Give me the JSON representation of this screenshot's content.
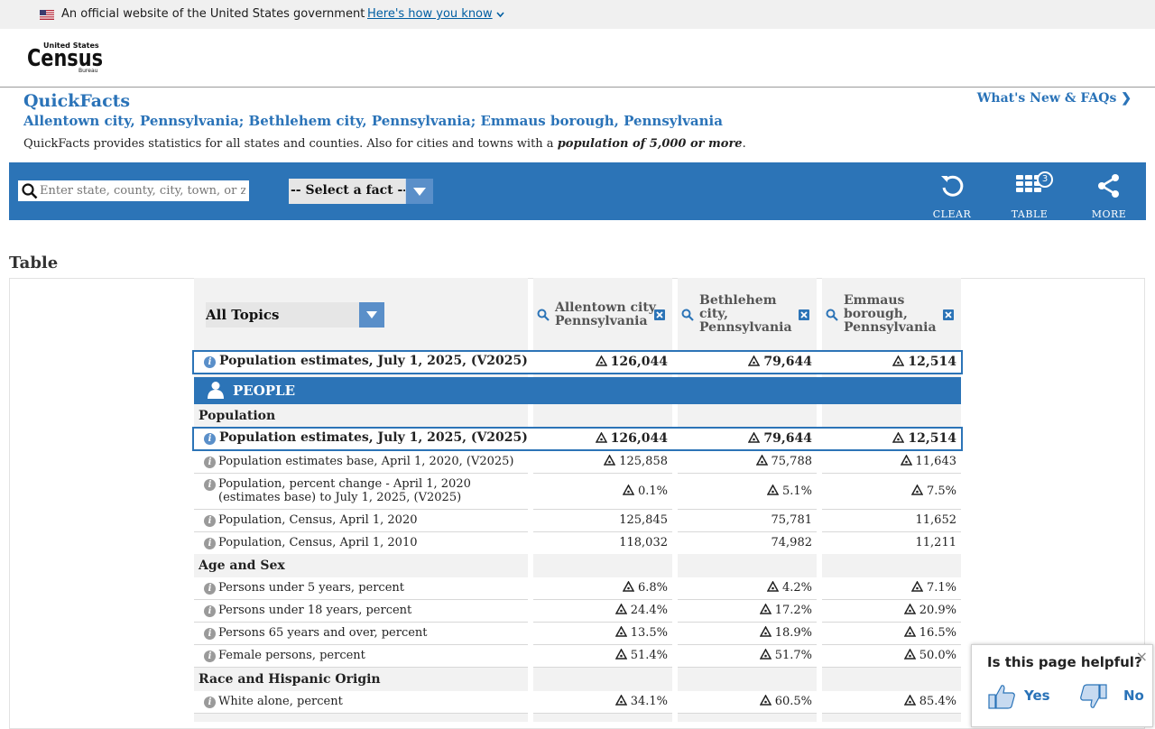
{
  "gov_banner": {
    "text": "An official website of the United States government",
    "link": "Here's how you know"
  },
  "header": {
    "logo_alt": "United States Census Bureau"
  },
  "quickfacts": {
    "title": "QuickFacts",
    "locations": "Allentown city, Pennsylvania; Bethlehem city, Pennsylvania; Emmaus borough, Pennsylvania",
    "description_pre": "QuickFacts provides statistics for all states and counties. Also for cities and towns with a ",
    "description_em": "population of 5,000 or more",
    "description_post": ".",
    "whats_new": "What's New & FAQs"
  },
  "toolbar": {
    "search_placeholder": "Enter state, county, city, town, or zip code",
    "fact_select": "-- Select a fact --",
    "clear": "CLEAR",
    "table": "TABLE",
    "table_badge": "3",
    "more": "MORE"
  },
  "section_title": "Table",
  "table": {
    "topic_select": "All Topics",
    "columns": [
      "Allentown city,\nPennsylvania",
      "Bethlehem\ncity,\nPennsylvania",
      "Emmaus\nborough,\nPennsylvania"
    ],
    "key_row": {
      "label": "Population estimates, July 1, 2025, (V2025)",
      "values": [
        "126,044",
        "79,644",
        "12,514"
      ]
    },
    "people_label": "PEOPLE",
    "groups": {
      "population": "Population",
      "age_sex": "Age and Sex",
      "race": "Race and Hispanic Origin"
    },
    "rows": [
      {
        "label": "Population estimates base, April 1, 2020, (V2025)",
        "values": [
          "125,858",
          "75,788",
          "11,643"
        ]
      },
      {
        "label": "Population, percent change - April 1, 2020 (estimates base) to July 1, 2025, (V2025)",
        "values": [
          "0.1%",
          "5.1%",
          "7.5%"
        ]
      },
      {
        "label": "Population, Census, April 1, 2020",
        "values": [
          "125,845",
          "75,781",
          "11,652"
        ]
      },
      {
        "label": "Population, Census, April 1, 2010",
        "values": [
          "118,032",
          "74,982",
          "11,211"
        ]
      },
      {
        "label": "Persons under 5 years, percent",
        "values": [
          "6.8%",
          "4.2%",
          "7.1%"
        ]
      },
      {
        "label": "Persons under 18 years, percent",
        "values": [
          "24.4%",
          "17.2%",
          "20.9%"
        ]
      },
      {
        "label": "Persons 65 years and over, percent",
        "values": [
          "13.5%",
          "18.9%",
          "16.5%"
        ]
      },
      {
        "label": "Female persons, percent",
        "values": [
          "51.4%",
          "51.7%",
          "50.0%"
        ]
      },
      {
        "label": "White alone, percent",
        "values": [
          "34.1%",
          "60.5%",
          "85.4%"
        ]
      }
    ]
  },
  "feedback": {
    "question": "Is this page helpful?",
    "yes": "Yes",
    "no": "No",
    "close": "×"
  },
  "colors": {
    "primary": "#2c74b7",
    "link": "#2a73b8"
  }
}
